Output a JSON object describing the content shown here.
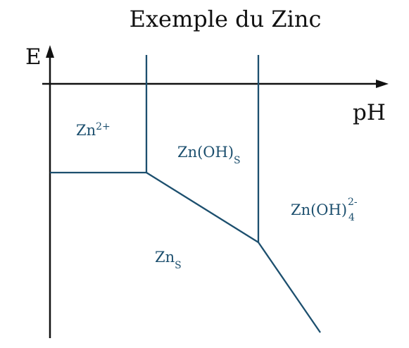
{
  "title": "Exemple du Zinc",
  "axes": {
    "y_label": "E",
    "x_label": "pH"
  },
  "species": [
    {
      "id": "zn2plus",
      "base": "Zn",
      "sup": "2+",
      "sub": ""
    },
    {
      "id": "znoh-solid",
      "base": "Zn(OH)",
      "sup": "",
      "sub": "S"
    },
    {
      "id": "znoh4",
      "base": "Zn(OH)",
      "sup": "2-",
      "sub": "4"
    },
    {
      "id": "zn-solid",
      "base": "Zn",
      "sup": "",
      "sub": "S"
    }
  ],
  "colors": {
    "axis": "#111111",
    "boundary": "#1c4f6e",
    "species_text": "#1c4f6e",
    "background": "#ffffff"
  }
}
